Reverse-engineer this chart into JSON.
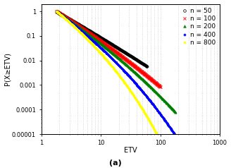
{
  "xlabel": "ETV",
  "ylabel": "P(X≥ETV)",
  "xlabel_bottom": "(a)",
  "xlim": [
    1,
    1000
  ],
  "ylim": [
    1e-05,
    2
  ],
  "series": [
    {
      "label": "n = 50",
      "color": "black",
      "marker": "o",
      "ms": 2.2,
      "n": 50,
      "x_max": 60,
      "cutoff": 0.12
    },
    {
      "label": "n = 100",
      "color": "red",
      "marker": "x",
      "ms": 2.5,
      "n": 100,
      "x_max": 100,
      "cutoff": 0.18
    },
    {
      "label": "n = 200",
      "color": "green",
      "marker": "^",
      "ms": 2.2,
      "n": 200,
      "x_max": 180,
      "cutoff": 0.22
    },
    {
      "label": "n = 400",
      "color": "blue",
      "marker": "o",
      "ms": 1.8,
      "n": 400,
      "x_max": 280,
      "cutoff": 0.28
    },
    {
      "label": "n = 800",
      "color": "yellow",
      "marker": "o",
      "ms": 1.8,
      "n": 800,
      "x_max": 300,
      "cutoff": 0.35
    }
  ],
  "background_color": "#ffffff",
  "grid_color": "#cccccc",
  "legend_fontsize": 6.5,
  "axis_fontsize": 7,
  "tick_fontsize": 6,
  "yticks": [
    1,
    0.1,
    0.01,
    0.001,
    0.0001,
    1e-05
  ],
  "ytick_labels": [
    "1",
    "0.1",
    "0.01",
    "0.001",
    "0.0001",
    "0.00001"
  ]
}
